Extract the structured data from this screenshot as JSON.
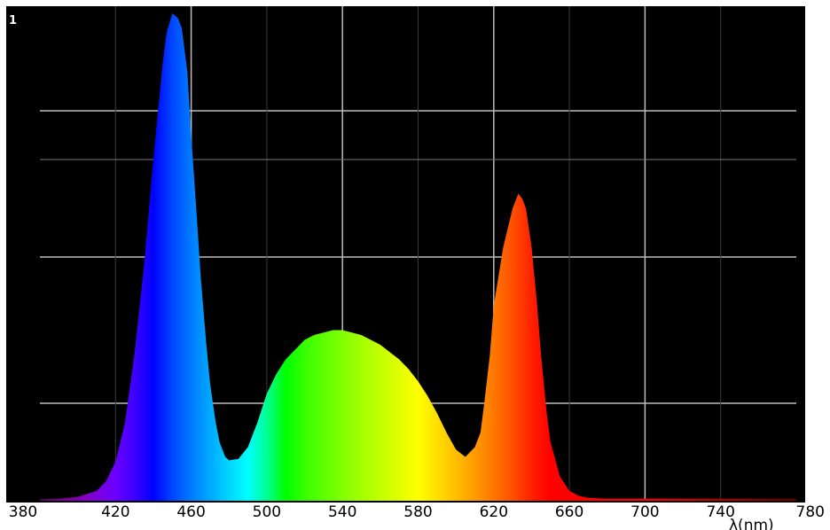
{
  "chart_data": {
    "type": "area",
    "title": "",
    "xlabel": "λ(nm)",
    "ylabel": "",
    "xlim": [
      380,
      780
    ],
    "ylim": [
      0,
      1
    ],
    "x_ticks": [
      380,
      420,
      460,
      500,
      540,
      580,
      620,
      660,
      700,
      740,
      780
    ],
    "y_tick_label": "1",
    "grid": true,
    "background": "#000000",
    "fill": "wavelength-spectrum-colors",
    "series": [
      {
        "x": [
          380,
          390,
          400,
          410,
          415,
          420,
          425,
          430,
          435,
          440,
          445,
          447,
          450,
          453,
          455,
          458,
          460,
          463,
          465,
          468,
          470,
          473,
          475,
          478,
          480,
          485,
          490,
          495,
          500,
          505,
          510,
          515,
          520,
          525,
          530,
          535,
          540,
          545,
          550,
          555,
          560,
          565,
          570,
          575,
          580,
          585,
          590,
          595,
          600,
          605,
          610,
          613,
          615,
          618,
          620,
          625,
          630,
          633,
          635,
          637,
          640,
          643,
          645,
          648,
          650,
          655,
          660,
          665,
          670,
          680,
          700,
          720,
          740,
          760,
          780
        ],
        "y": [
          0.003,
          0.004,
          0.008,
          0.02,
          0.04,
          0.08,
          0.16,
          0.3,
          0.48,
          0.7,
          0.9,
          0.96,
          1.0,
          0.99,
          0.97,
          0.88,
          0.75,
          0.58,
          0.46,
          0.32,
          0.24,
          0.16,
          0.12,
          0.09,
          0.083,
          0.086,
          0.11,
          0.16,
          0.22,
          0.26,
          0.29,
          0.31,
          0.33,
          0.34,
          0.345,
          0.35,
          0.35,
          0.345,
          0.34,
          0.33,
          0.32,
          0.305,
          0.29,
          0.27,
          0.245,
          0.215,
          0.18,
          0.14,
          0.105,
          0.09,
          0.11,
          0.14,
          0.2,
          0.3,
          0.4,
          0.52,
          0.6,
          0.63,
          0.62,
          0.6,
          0.52,
          0.4,
          0.3,
          0.18,
          0.12,
          0.05,
          0.02,
          0.01,
          0.006,
          0.004,
          0.004,
          0.004,
          0.004,
          0.004,
          0.004
        ]
      }
    ]
  }
}
